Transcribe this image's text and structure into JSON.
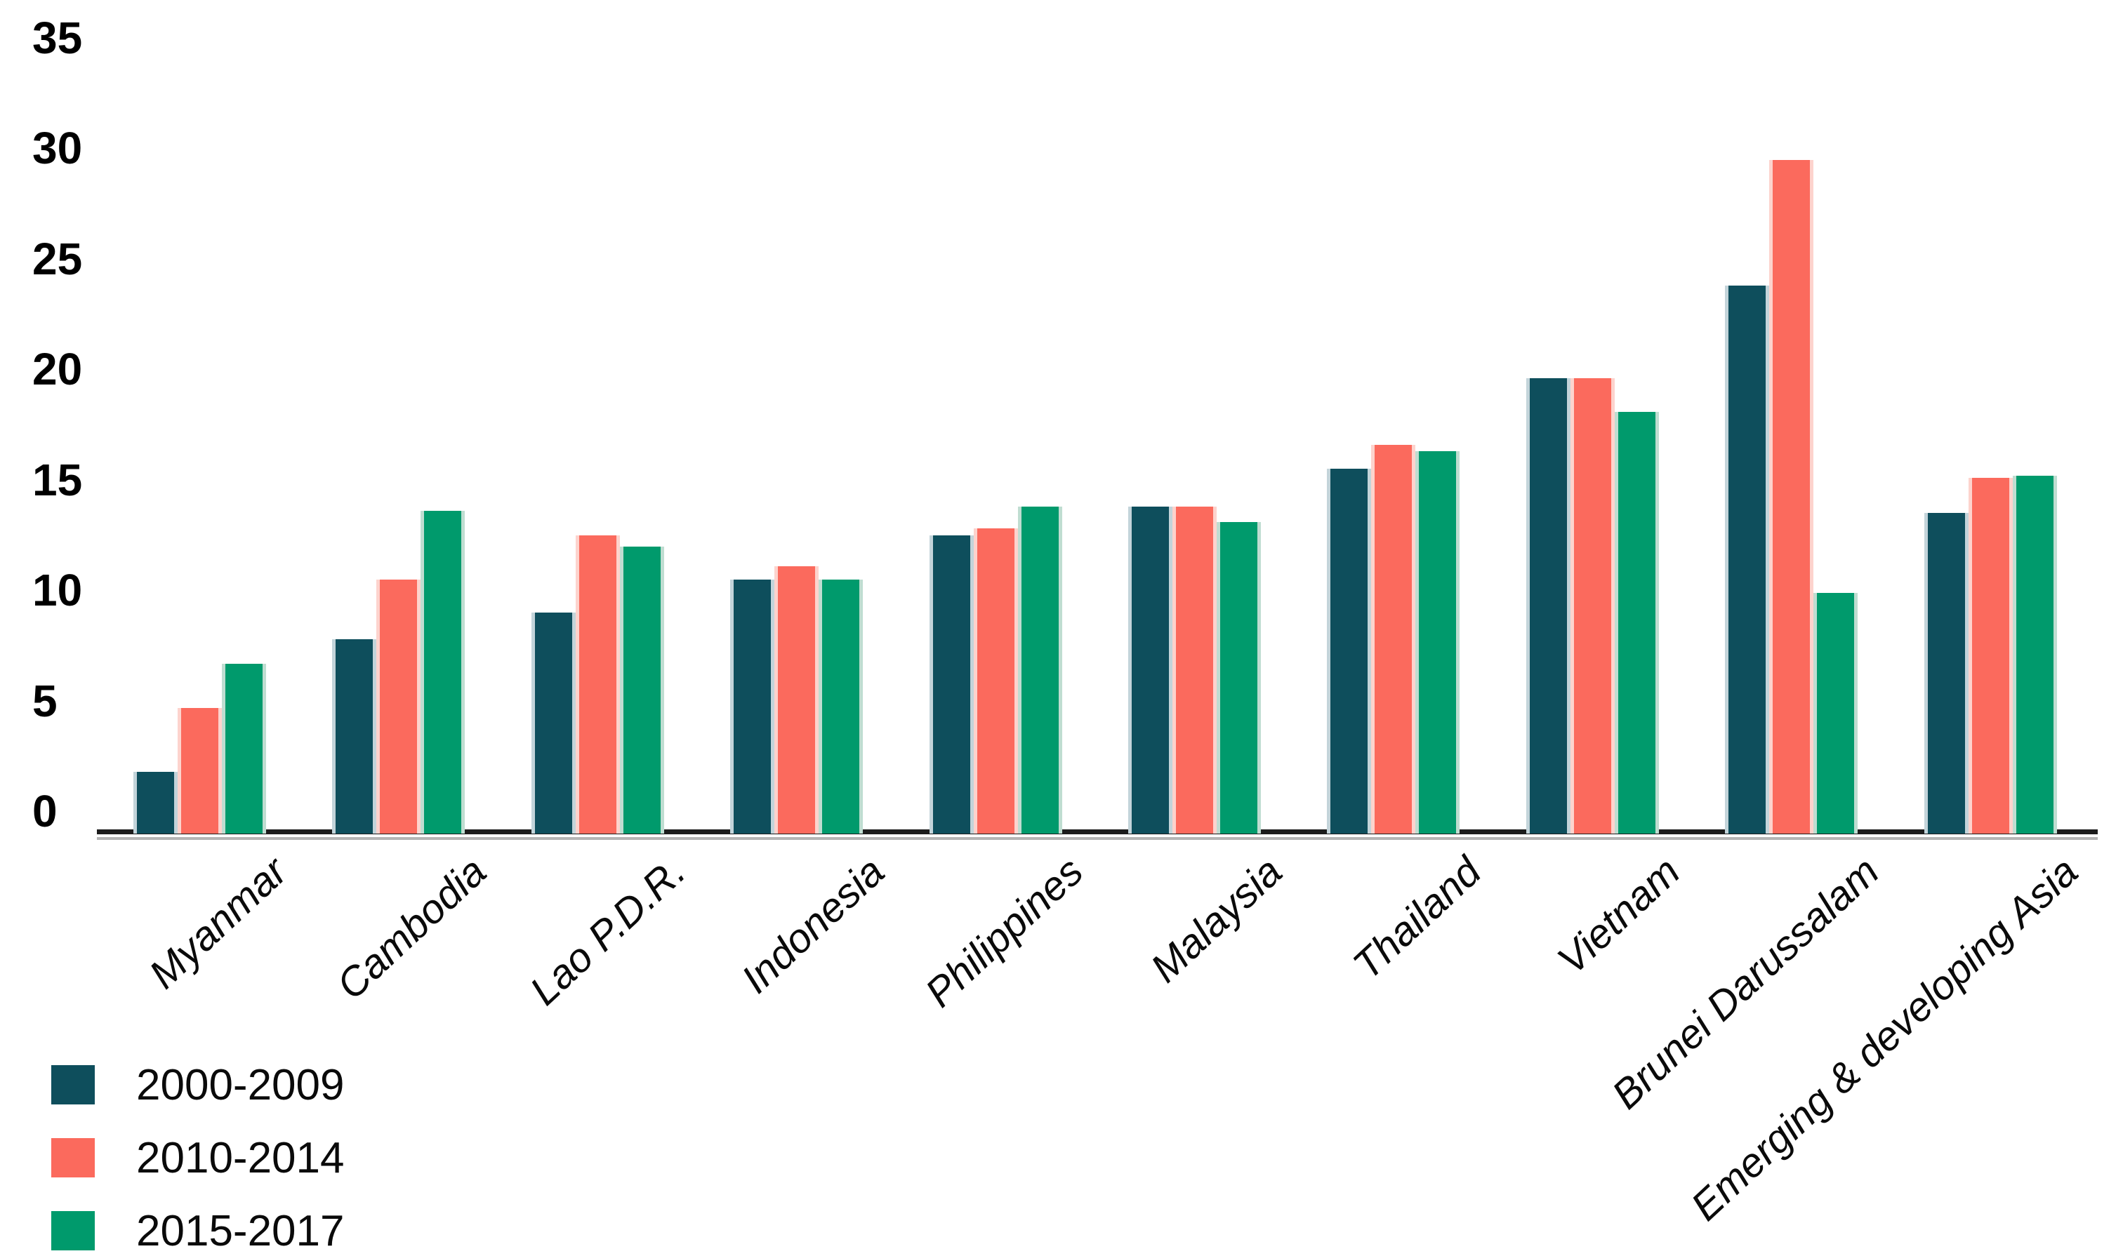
{
  "chart_data": {
    "type": "bar",
    "title": "",
    "xlabel": "",
    "ylabel": "",
    "categories": [
      "Myanmar",
      "Cambodia",
      "Lao P.D.R.",
      "Indonesia",
      "Philippines",
      "Malaysia",
      "Thailand",
      "Vietnam",
      "Brunei Darussalam",
      "Emerging & developing Asia"
    ],
    "series": [
      {
        "name": "2000-2009",
        "color": "#0e4e5c",
        "edge_color": "#c3d4da",
        "values": [
          2.8,
          8.8,
          10.0,
          11.5,
          13.5,
          14.8,
          16.5,
          20.6,
          24.8,
          14.5
        ]
      },
      {
        "name": "2010-2014",
        "color": "#fb6a5d",
        "edge_color": "#fdd3cd",
        "values": [
          5.7,
          11.5,
          13.5,
          12.1,
          13.8,
          14.8,
          17.6,
          20.6,
          30.5,
          16.1
        ]
      },
      {
        "name": "2015-2017",
        "color": "#009a6c",
        "edge_color": "#bfddd1",
        "values": [
          7.7,
          14.6,
          13.0,
          11.5,
          14.8,
          14.1,
          17.3,
          19.1,
          10.9,
          16.2
        ]
      }
    ],
    "ylim": [
      0,
      35
    ],
    "yticks": [
      0,
      5,
      10,
      15,
      20,
      25,
      30,
      35
    ],
    "grid": false,
    "legend_position": "bottom-left",
    "axis_color": "#1c1c1c"
  }
}
